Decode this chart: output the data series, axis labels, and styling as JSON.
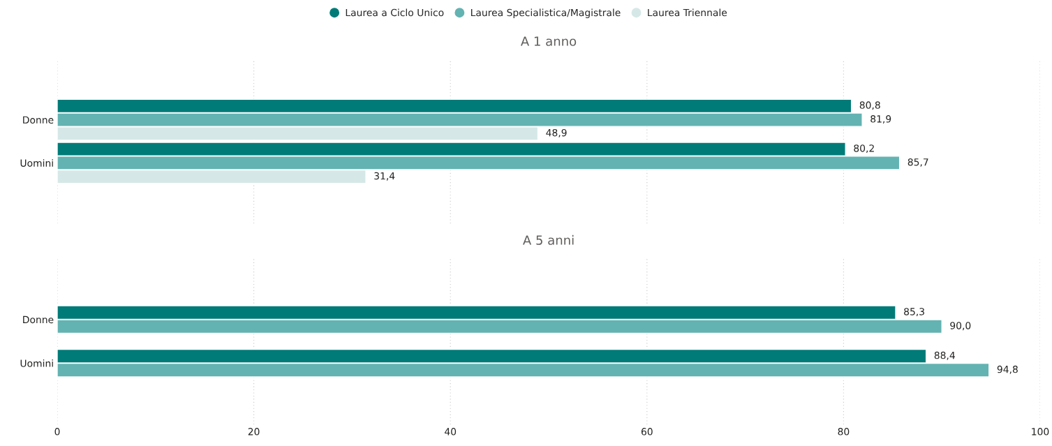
{
  "chart_data": [
    {
      "type": "bar",
      "orientation": "horizontal",
      "title": "A 1 anno",
      "categories": [
        "Donne",
        "Uomini"
      ],
      "series": [
        {
          "name": "Laurea a Ciclo Unico",
          "color": "#017b78",
          "values": [
            80.8,
            80.2
          ],
          "value_labels": [
            "80,8",
            "80,2"
          ]
        },
        {
          "name": "Laurea Specialistica/Magistrale",
          "color": "#63b3b2",
          "values": [
            81.9,
            85.7
          ],
          "value_labels": [
            "81,9",
            "85,7"
          ]
        },
        {
          "name": "Laurea Triennale",
          "color": "#d5e8e7",
          "values": [
            48.9,
            31.4
          ],
          "value_labels": [
            "48,9",
            "31,4"
          ]
        }
      ],
      "xlim": [
        0,
        100
      ],
      "xticks": [
        0,
        20,
        40,
        60,
        80,
        100
      ],
      "grid": "x",
      "legend": "top",
      "marker": "circle",
      "tick_labels": "y"
    },
    {
      "type": "bar",
      "orientation": "horizontal",
      "title": "A 5 anni",
      "categories": [
        "Donne",
        "Uomini"
      ],
      "series": [
        {
          "color": "#017b78",
          "values": [
            85.3,
            88.4
          ],
          "value_labels": [
            "85,3",
            "88,4"
          ]
        },
        {
          "color": "#63b3b2",
          "values": [
            90.0,
            94.8
          ],
          "value_labels": [
            "90,0",
            "94,8"
          ]
        }
      ],
      "xlim": [
        0,
        100
      ],
      "xticks": [
        0,
        20,
        40,
        60,
        80,
        100
      ],
      "grid": "x"
    }
  ]
}
